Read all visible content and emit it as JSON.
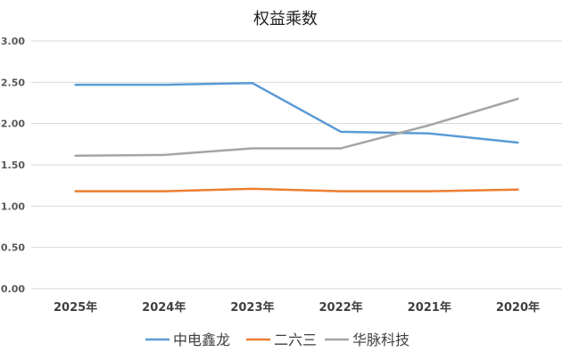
{
  "chart_data": {
    "type": "line",
    "title": "权益乘数",
    "categories": [
      "2025年",
      "2024年",
      "2023年",
      "2022年",
      "2021年",
      "2020年"
    ],
    "series": [
      {
        "name": "中电鑫龙",
        "color": "#5B9BD5",
        "values": [
          2.47,
          2.47,
          2.49,
          1.9,
          1.88,
          1.77
        ]
      },
      {
        "name": "二六三",
        "color": "#ED7D31",
        "values": [
          1.18,
          1.18,
          1.21,
          1.18,
          1.18,
          1.2
        ]
      },
      {
        "name": "华脉科技",
        "color": "#A5A5A5",
        "values": [
          1.61,
          1.62,
          1.7,
          1.7,
          1.98,
          2.3
        ]
      }
    ],
    "ylim": [
      0,
      3
    ],
    "yticks": [
      "0.00",
      "0.50",
      "1.00",
      "1.50",
      "2.00",
      "2.50",
      "3.00"
    ],
    "grid": true,
    "legend_position": "bottom"
  }
}
